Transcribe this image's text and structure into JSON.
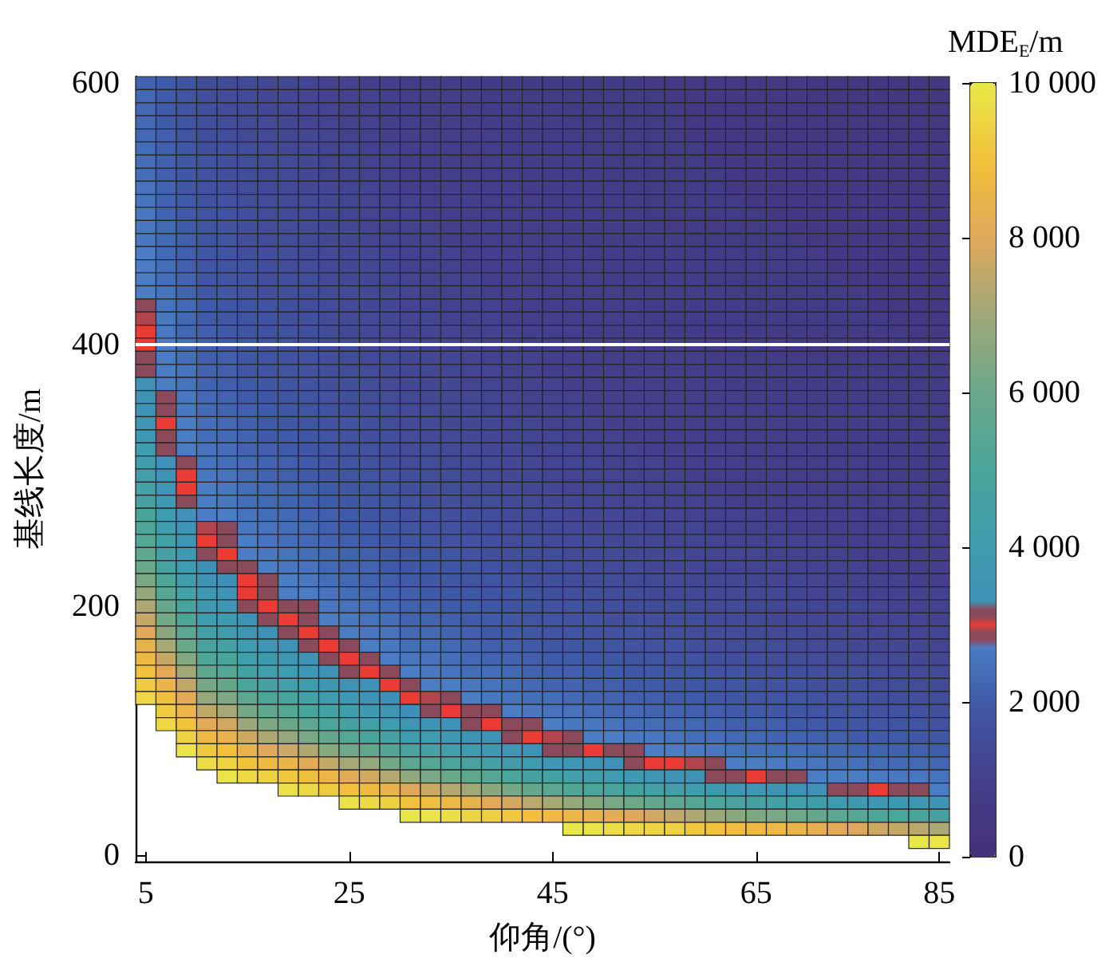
{
  "chart_data": {
    "type": "heatmap",
    "xlabel": "仰角/(°)",
    "ylabel": "基线长度/m",
    "clabel": "MDE$_{E}$/m",
    "clim": [
      0,
      10000
    ],
    "cticks": [
      0,
      {
        "value": 2000,
        "label": "2 000"
      },
      {
        "value": 4000,
        "label": "4 000"
      },
      {
        "value": 6000,
        "label": "6 000"
      },
      {
        "value": 8000,
        "label": "8 000"
      },
      {
        "value": 10000,
        "label": "10 000"
      }
    ],
    "ref_lines": [
      {
        "axis": "y",
        "value": "400",
        "color": "#ffffff"
      }
    ],
    "categories": [
      "5",
      null,
      null,
      null,
      null,
      null,
      null,
      null,
      null,
      null,
      "25",
      null,
      null,
      null,
      null,
      null,
      null,
      null,
      null,
      null,
      "45",
      null,
      null,
      null,
      null,
      null,
      null,
      null,
      null,
      null,
      "65",
      null,
      null,
      null,
      null,
      null,
      null,
      null,
      null,
      "85"
    ],
    "y_categories": [
      "600",
      null,
      null,
      null,
      null,
      null,
      null,
      null,
      null,
      null,
      null,
      null,
      null,
      null,
      null,
      null,
      null,
      null,
      null,
      null,
      "400",
      null,
      null,
      null,
      null,
      null,
      null,
      null,
      null,
      null,
      null,
      null,
      null,
      null,
      null,
      null,
      null,
      null,
      null,
      null,
      "200",
      null,
      null,
      null,
      null,
      null,
      null,
      null,
      null,
      null,
      null,
      null,
      null,
      null,
      null,
      null,
      null,
      null,
      null,
      "0"
    ],
    "cells": [
      [
        2200,
        2000,
        1800,
        1500,
        1500,
        1400,
        1300,
        1300,
        1200,
        1100,
        1100,
        1000,
        1000,
        900,
        900,
        900,
        800,
        800,
        800,
        800,
        700,
        700,
        700,
        700,
        700,
        600,
        600,
        600,
        600,
        600,
        600,
        600,
        600,
        500,
        500,
        500,
        500,
        500,
        500,
        500
      ],
      [
        2300,
        2000,
        1800,
        1600,
        1500,
        1400,
        1300,
        1300,
        1200,
        1100,
        1100,
        1100,
        1000,
        900,
        900,
        900,
        900,
        800,
        800,
        800,
        700,
        700,
        700,
        700,
        700,
        700,
        600,
        600,
        600,
        600,
        600,
        600,
        600,
        500,
        500,
        500,
        500,
        500,
        500,
        500
      ],
      [
        2300,
        2000,
        1800,
        1600,
        1500,
        1400,
        1300,
        1300,
        1200,
        1200,
        1100,
        1100,
        1000,
        1000,
        900,
        900,
        900,
        800,
        800,
        800,
        800,
        700,
        700,
        700,
        700,
        700,
        700,
        600,
        600,
        600,
        600,
        600,
        600,
        600,
        500,
        500,
        500,
        500,
        500,
        500
      ],
      [
        2300,
        2000,
        1800,
        1600,
        1500,
        1400,
        1400,
        1300,
        1200,
        1200,
        1100,
        1100,
        1000,
        1000,
        900,
        900,
        900,
        800,
        800,
        800,
        800,
        700,
        700,
        700,
        700,
        700,
        700,
        600,
        600,
        600,
        600,
        600,
        600,
        600,
        500,
        500,
        500,
        500,
        500,
        500
      ],
      [
        2300,
        2100,
        1800,
        1600,
        1600,
        1400,
        1400,
        1300,
        1300,
        1200,
        1100,
        1100,
        1000,
        1000,
        1000,
        900,
        900,
        900,
        800,
        800,
        800,
        800,
        700,
        700,
        700,
        700,
        700,
        600,
        600,
        600,
        600,
        600,
        600,
        600,
        500,
        500,
        500,
        500,
        500,
        500
      ],
      [
        2400,
        2100,
        1900,
        1600,
        1600,
        1500,
        1400,
        1300,
        1300,
        1200,
        1200,
        1100,
        1100,
        1000,
        1000,
        900,
        900,
        900,
        800,
        800,
        800,
        800,
        700,
        700,
        700,
        700,
        700,
        700,
        600,
        600,
        600,
        600,
        600,
        600,
        600,
        500,
        500,
        500,
        500,
        500
      ],
      [
        2400,
        2100,
        1900,
        1700,
        1600,
        1500,
        1400,
        1400,
        1300,
        1200,
        1200,
        1100,
        1100,
        1000,
        1000,
        900,
        900,
        900,
        900,
        800,
        800,
        800,
        800,
        700,
        700,
        700,
        700,
        700,
        600,
        600,
        600,
        600,
        600,
        600,
        600,
        600,
        500,
        500,
        500,
        500
      ],
      [
        2400,
        2100,
        1900,
        1700,
        1600,
        1500,
        1400,
        1400,
        1300,
        1200,
        1200,
        1100,
        1100,
        1000,
        1000,
        1000,
        900,
        900,
        900,
        800,
        800,
        800,
        800,
        700,
        700,
        700,
        700,
        700,
        700,
        600,
        600,
        600,
        600,
        600,
        600,
        600,
        500,
        500,
        500,
        500
      ],
      [
        2500,
        2200,
        1900,
        1700,
        1600,
        1500,
        1400,
        1400,
        1300,
        1300,
        1200,
        1200,
        1100,
        1000,
        1000,
        1000,
        900,
        900,
        900,
        800,
        800,
        800,
        800,
        800,
        700,
        700,
        700,
        700,
        700,
        600,
        600,
        600,
        600,
        600,
        600,
        600,
        600,
        500,
        500,
        500
      ],
      [
        2500,
        2200,
        2000,
        1700,
        1700,
        1500,
        1500,
        1400,
        1400,
        1300,
        1200,
        1200,
        1100,
        1100,
        1000,
        1000,
        1000,
        900,
        900,
        900,
        800,
        800,
        800,
        800,
        800,
        700,
        700,
        700,
        700,
        700,
        600,
        600,
        600,
        600,
        600,
        600,
        600,
        600,
        600,
        500
      ],
      [
        2600,
        2200,
        2000,
        1800,
        1700,
        1600,
        1500,
        1400,
        1400,
        1300,
        1200,
        1200,
        1100,
        1100,
        1000,
        1000,
        1000,
        900,
        900,
        900,
        800,
        800,
        800,
        800,
        800,
        700,
        700,
        700,
        700,
        700,
        700,
        600,
        600,
        600,
        600,
        600,
        600,
        600,
        600,
        500
      ],
      [
        2600,
        2300,
        2000,
        1800,
        1700,
        1600,
        1500,
        1500,
        1400,
        1300,
        1300,
        1200,
        1100,
        1100,
        1100,
        1000,
        1000,
        1000,
        900,
        900,
        900,
        800,
        800,
        800,
        800,
        800,
        700,
        700,
        700,
        700,
        700,
        700,
        600,
        600,
        600,
        600,
        600,
        600,
        600,
        600
      ],
      [
        2600,
        2300,
        2100,
        1800,
        1800,
        1600,
        1500,
        1500,
        1400,
        1300,
        1300,
        1200,
        1200,
        1100,
        1100,
        1000,
        1000,
        1000,
        900,
        900,
        900,
        800,
        800,
        800,
        800,
        800,
        800,
        700,
        700,
        700,
        700,
        700,
        700,
        600,
        600,
        600,
        600,
        600,
        600,
        600
      ],
      [
        2700,
        2300,
        2100,
        1900,
        1800,
        1600,
        1600,
        1500,
        1400,
        1400,
        1300,
        1300,
        1200,
        1100,
        1100,
        1100,
        1000,
        1000,
        1000,
        900,
        900,
        900,
        800,
        800,
        800,
        800,
        800,
        700,
        700,
        700,
        700,
        700,
        700,
        700,
        600,
        600,
        600,
        600,
        600,
        600
      ],
      [
        2700,
        2400,
        2100,
        1900,
        1800,
        1700,
        1600,
        1500,
        1500,
        1400,
        1300,
        1300,
        1200,
        1100,
        1100,
        1100,
        1000,
        1000,
        1000,
        900,
        900,
        900,
        900,
        800,
        800,
        800,
        800,
        800,
        700,
        700,
        700,
        700,
        700,
        700,
        600,
        600,
        600,
        600,
        600,
        600
      ],
      [
        2700,
        2400,
        2200,
        1900,
        1800,
        1700,
        1600,
        1600,
        1500,
        1400,
        1300,
        1300,
        1200,
        1200,
        1100,
        1100,
        1100,
        1000,
        1000,
        900,
        900,
        900,
        900,
        800,
        800,
        800,
        800,
        800,
        700,
        700,
        700,
        700,
        700,
        700,
        700,
        600,
        600,
        600,
        600,
        600
      ],
      [
        2700,
        2500,
        2200,
        1900,
        1900,
        1700,
        1600,
        1600,
        1500,
        1400,
        1400,
        1300,
        1300,
        1200,
        1100,
        1100,
        1100,
        1000,
        1000,
        1000,
        900,
        900,
        900,
        900,
        800,
        800,
        800,
        800,
        800,
        700,
        700,
        700,
        700,
        700,
        700,
        700,
        600,
        600,
        600,
        600
      ],
      [
        2850,
        2500,
        2300,
        2000,
        1900,
        1800,
        1700,
        1600,
        1500,
        1500,
        1400,
        1300,
        1300,
        1200,
        1200,
        1100,
        1100,
        1100,
        1000,
        1000,
        900,
        900,
        900,
        900,
        900,
        800,
        800,
        800,
        800,
        800,
        700,
        700,
        700,
        700,
        700,
        700,
        600,
        600,
        600,
        600
      ],
      [
        2910,
        2600,
        2300,
        2000,
        1900,
        1800,
        1700,
        1600,
        1600,
        1500,
        1400,
        1400,
        1300,
        1200,
        1200,
        1100,
        1100,
        1100,
        1000,
        1000,
        1000,
        900,
        900,
        900,
        900,
        800,
        800,
        800,
        800,
        800,
        700,
        700,
        700,
        700,
        700,
        700,
        700,
        600,
        600,
        600
      ],
      [
        2970,
        2600,
        2300,
        2100,
        2000,
        1800,
        1700,
        1700,
        1600,
        1500,
        1400,
        1400,
        1300,
        1200,
        1200,
        1200,
        1100,
        1100,
        1100,
        1000,
        1000,
        1000,
        900,
        900,
        900,
        900,
        800,
        800,
        800,
        800,
        800,
        700,
        700,
        700,
        700,
        700,
        700,
        700,
        600,
        600
      ],
      [
        3030,
        2700,
        2400,
        2100,
        2000,
        1900,
        1800,
        1700,
        1600,
        1500,
        1500,
        1400,
        1300,
        1300,
        1200,
        1200,
        1200,
        1100,
        1100,
        1000,
        1000,
        1000,
        1000,
        900,
        900,
        900,
        900,
        800,
        800,
        800,
        800,
        800,
        700,
        700,
        700,
        700,
        700,
        700,
        700,
        600
      ],
      [
        3100,
        2700,
        2400,
        2100,
        2100,
        1900,
        1800,
        1700,
        1700,
        1600,
        1500,
        1400,
        1400,
        1300,
        1300,
        1200,
        1200,
        1100,
        1100,
        1100,
        1000,
        1000,
        1000,
        900,
        900,
        900,
        900,
        900,
        800,
        800,
        800,
        800,
        800,
        700,
        700,
        700,
        700,
        700,
        700,
        700
      ],
      [
        3200,
        2700,
        2500,
        2200,
        2100,
        1900,
        1800,
        1800,
        1700,
        1600,
        1500,
        1500,
        1400,
        1300,
        1300,
        1200,
        1200,
        1200,
        1100,
        1100,
        1000,
        1000,
        1000,
        1000,
        900,
        900,
        900,
        900,
        800,
        800,
        800,
        800,
        800,
        800,
        700,
        700,
        700,
        700,
        700,
        700
      ],
      [
        3350,
        2700,
        2500,
        2200,
        2100,
        2000,
        1900,
        1800,
        1700,
        1600,
        1600,
        1500,
        1400,
        1300,
        1300,
        1300,
        1200,
        1200,
        1100,
        1100,
        1100,
        1000,
        1000,
        1000,
        1000,
        900,
        900,
        900,
        900,
        800,
        800,
        800,
        800,
        800,
        800,
        700,
        700,
        700,
        700,
        700
      ],
      [
        3450,
        2870,
        2600,
        2300,
        2200,
        2000,
        1900,
        1800,
        1800,
        1700,
        1600,
        1500,
        1500,
        1400,
        1300,
        1300,
        1300,
        1200,
        1200,
        1100,
        1100,
        1100,
        1000,
        1000,
        1000,
        1000,
        900,
        900,
        900,
        900,
        800,
        800,
        800,
        800,
        800,
        800,
        700,
        700,
        700,
        700
      ],
      [
        3550,
        2900,
        2600,
        2300,
        2200,
        2100,
        2000,
        1900,
        1800,
        1700,
        1600,
        1600,
        1500,
        1400,
        1400,
        1300,
        1300,
        1200,
        1200,
        1100,
        1100,
        1100,
        1000,
        1000,
        1000,
        1000,
        1000,
        900,
        900,
        900,
        900,
        800,
        800,
        800,
        800,
        800,
        800,
        700,
        700,
        700
      ],
      [
        3650,
        3000,
        2700,
        2400,
        2300,
        2100,
        2000,
        1900,
        1800,
        1700,
        1700,
        1600,
        1500,
        1400,
        1400,
        1300,
        1300,
        1300,
        1200,
        1200,
        1100,
        1100,
        1100,
        1000,
        1000,
        1000,
        1000,
        900,
        900,
        900,
        900,
        900,
        800,
        800,
        800,
        800,
        800,
        800,
        700,
        700
      ],
      [
        3800,
        3100,
        2700,
        2400,
        2300,
        2200,
        2000,
        2000,
        1900,
        1800,
        1700,
        1600,
        1600,
        1500,
        1400,
        1400,
        1300,
        1300,
        1200,
        1200,
        1200,
        1100,
        1100,
        1100,
        1000,
        1000,
        1000,
        1000,
        900,
        900,
        900,
        900,
        900,
        800,
        800,
        800,
        800,
        800,
        800,
        700
      ],
      [
        4000,
        3150,
        2700,
        2500,
        2400,
        2200,
        2100,
        2000,
        1900,
        1800,
        1700,
        1700,
        1600,
        1500,
        1500,
        1400,
        1400,
        1300,
        1300,
        1200,
        1200,
        1200,
        1100,
        1100,
        1100,
        1000,
        1000,
        1000,
        1000,
        900,
        900,
        900,
        900,
        900,
        800,
        800,
        800,
        800,
        800,
        800
      ],
      [
        4100,
        3350,
        2890,
        2500,
        2400,
        2300,
        2200,
        2100,
        2000,
        1900,
        1800,
        1700,
        1600,
        1500,
        1500,
        1400,
        1400,
        1400,
        1300,
        1300,
        1200,
        1200,
        1200,
        1100,
        1100,
        1100,
        1000,
        1000,
        1000,
        1000,
        900,
        900,
        900,
        900,
        900,
        900,
        800,
        800,
        800,
        800
      ],
      [
        4300,
        3500,
        2960,
        2600,
        2500,
        2300,
        2200,
        2100,
        2000,
        1900,
        1800,
        1800,
        1700,
        1600,
        1500,
        1500,
        1400,
        1400,
        1300,
        1300,
        1200,
        1200,
        1200,
        1200,
        1100,
        1100,
        1100,
        1000,
        1000,
        1000,
        1000,
        1000,
        900,
        900,
        900,
        900,
        900,
        800,
        800,
        800
      ],
      [
        4500,
        3600,
        3040,
        2700,
        2600,
        2400,
        2300,
        2200,
        2100,
        2000,
        1900,
        1800,
        1700,
        1600,
        1600,
        1500,
        1500,
        1400,
        1400,
        1300,
        1300,
        1200,
        1200,
        1200,
        1200,
        1100,
        1100,
        1100,
        1000,
        1000,
        1000,
        1000,
        1000,
        900,
        900,
        900,
        900,
        900,
        900,
        800
      ],
      [
        4700,
        3800,
        3200,
        2700,
        2600,
        2400,
        2300,
        2200,
        2100,
        2000,
        1900,
        1900,
        1800,
        1700,
        1600,
        1600,
        1500,
        1500,
        1400,
        1400,
        1300,
        1300,
        1200,
        1200,
        1200,
        1200,
        1100,
        1100,
        1100,
        1000,
        1000,
        1000,
        1000,
        1000,
        900,
        900,
        900,
        900,
        900,
        900
      ],
      [
        4900,
        4000,
        3350,
        2700,
        2700,
        2500,
        2400,
        2300,
        2200,
        2100,
        2000,
        1900,
        1800,
        1700,
        1700,
        1600,
        1600,
        1500,
        1400,
        1400,
        1400,
        1300,
        1300,
        1300,
        1200,
        1200,
        1200,
        1100,
        1100,
        1100,
        1100,
        1000,
        1000,
        1000,
        1000,
        1000,
        900,
        900,
        900,
        900
      ],
      [
        5100,
        4100,
        3500,
        2910,
        2800,
        2600,
        2500,
        2400,
        2300,
        2100,
        2000,
        2000,
        1900,
        1800,
        1700,
        1700,
        1600,
        1500,
        1500,
        1400,
        1400,
        1400,
        1300,
        1300,
        1300,
        1200,
        1200,
        1200,
        1100,
        1100,
        1100,
        1100,
        1000,
        1000,
        1000,
        1000,
        1000,
        900,
        900,
        900
      ],
      [
        5300,
        4400,
        3600,
        3000,
        2880,
        2700,
        2500,
        2400,
        2300,
        2200,
        2100,
        2000,
        1900,
        1800,
        1800,
        1700,
        1700,
        1600,
        1500,
        1500,
        1400,
        1400,
        1400,
        1300,
        1300,
        1300,
        1200,
        1200,
        1200,
        1100,
        1100,
        1100,
        1100,
        1100,
        1000,
        1000,
        1000,
        1000,
        1000,
        900
      ],
      [
        5700,
        4600,
        3800,
        3100,
        2980,
        2700,
        2600,
        2500,
        2400,
        2300,
        2200,
        2100,
        2000,
        1900,
        1800,
        1800,
        1700,
        1600,
        1600,
        1500,
        1500,
        1400,
        1400,
        1400,
        1300,
        1300,
        1300,
        1200,
        1200,
        1200,
        1200,
        1100,
        1100,
        1100,
        1100,
        1000,
        1000,
        1000,
        1000,
        1000
      ],
      [
        6000,
        4800,
        4000,
        3300,
        3100,
        2830,
        2700,
        2600,
        2500,
        2300,
        2200,
        2200,
        2000,
        1900,
        1900,
        1800,
        1800,
        1700,
        1600,
        1600,
        1500,
        1500,
        1400,
        1400,
        1400,
        1300,
        1300,
        1300,
        1200,
        1200,
        1200,
        1200,
        1100,
        1100,
        1100,
        1100,
        1000,
        1000,
        1000,
        1000
      ],
      [
        6300,
        5100,
        4200,
        3500,
        3300,
        3000,
        2790,
        2700,
        2600,
        2400,
        2300,
        2200,
        2100,
        2000,
        1900,
        1900,
        1800,
        1800,
        1700,
        1600,
        1600,
        1500,
        1500,
        1500,
        1400,
        1400,
        1400,
        1300,
        1300,
        1300,
        1200,
        1200,
        1200,
        1200,
        1100,
        1100,
        1100,
        1100,
        1000,
        1000
      ],
      [
        6800,
        5400,
        4500,
        3700,
        3500,
        3040,
        2890,
        2700,
        2700,
        2500,
        2400,
        2300,
        2200,
        2100,
        2000,
        1900,
        1900,
        1800,
        1800,
        1700,
        1600,
        1600,
        1600,
        1500,
        1500,
        1400,
        1400,
        1400,
        1300,
        1300,
        1300,
        1300,
        1200,
        1200,
        1200,
        1100,
        1100,
        1100,
        1100,
        1100
      ],
      [
        7200,
        5800,
        4800,
        3900,
        3650,
        3200,
        3000,
        2890,
        2800,
        2600,
        2500,
        2400,
        2300,
        2200,
        2100,
        2000,
        2000,
        1900,
        1800,
        1800,
        1700,
        1700,
        1600,
        1600,
        1500,
        1500,
        1500,
        1400,
        1400,
        1400,
        1300,
        1300,
        1300,
        1200,
        1200,
        1200,
        1200,
        1100,
        1100,
        1100
      ],
      [
        7600,
        6200,
        5100,
        4150,
        3900,
        3450,
        3200,
        3000,
        2880,
        2700,
        2600,
        2500,
        2400,
        2200,
        2200,
        2100,
        2000,
        2000,
        1900,
        1800,
        1800,
        1700,
        1700,
        1600,
        1600,
        1600,
        1500,
        1500,
        1400,
        1400,
        1400,
        1300,
        1300,
        1300,
        1300,
        1200,
        1200,
        1200,
        1200,
        1100
      ],
      [
        8000,
        6600,
        5550,
        4450,
        4200,
        3650,
        3400,
        3130,
        3000,
        2830,
        2700,
        2600,
        2500,
        2300,
        2300,
        2200,
        2100,
        2000,
        2000,
        1900,
        1800,
        1800,
        1700,
        1700,
        1700,
        1600,
        1600,
        1500,
        1500,
        1500,
        1400,
        1400,
        1400,
        1300,
        1300,
        1300,
        1300,
        1200,
        1200,
        1200
      ],
      [
        8400,
        7100,
        6000,
        4800,
        4500,
        3950,
        3600,
        3450,
        3200,
        2960,
        2820,
        2700,
        2600,
        2400,
        2400,
        2300,
        2200,
        2100,
        2100,
        2000,
        1900,
        1900,
        1800,
        1800,
        1700,
        1700,
        1700,
        1600,
        1600,
        1500,
        1500,
        1500,
        1400,
        1400,
        1400,
        1300,
        1300,
        1300,
        1300,
        1200
      ],
      [
        8700,
        7600,
        6450,
        5200,
        4850,
        4250,
        3900,
        3650,
        3450,
        3150,
        2960,
        2850,
        2700,
        2600,
        2500,
        2400,
        2300,
        2200,
        2200,
        2100,
        2000,
        2000,
        1900,
        1900,
        1800,
        1800,
        1700,
        1700,
        1600,
        1600,
        1600,
        1500,
        1500,
        1500,
        1400,
        1400,
        1400,
        1400,
        1300,
        1300
      ],
      [
        9000,
        8100,
        7000,
        5700,
        5300,
        4600,
        4250,
        4000,
        3700,
        3400,
        3150,
        3000,
        2840,
        2700,
        2600,
        2500,
        2400,
        2400,
        2300,
        2200,
        2100,
        2100,
        2000,
        2000,
        1900,
        1900,
        1800,
        1800,
        1700,
        1700,
        1600,
        1600,
        1600,
        1600,
        1500,
        1500,
        1500,
        1400,
        1400,
        1400
      ],
      [
        9300,
        8500,
        7500,
        6200,
        5800,
        5000,
        4650,
        4350,
        4050,
        3700,
        3450,
        3350,
        3000,
        2830,
        2700,
        2700,
        2600,
        2500,
        2400,
        2300,
        2200,
        2200,
        2100,
        2100,
        2000,
        2000,
        1900,
        1900,
        1800,
        1800,
        1700,
        1700,
        1700,
        1600,
        1600,
        1600,
        1500,
        1500,
        1500,
        1400
      ],
      [
        9600,
        8900,
        8100,
        6800,
        6350,
        5600,
        5100,
        4800,
        4500,
        4050,
        3750,
        3550,
        3300,
        3000,
        2910,
        2820,
        2700,
        2600,
        2500,
        2400,
        2400,
        2300,
        2200,
        2200,
        2100,
        2100,
        2000,
        2000,
        1900,
        1900,
        1800,
        1800,
        1800,
        1700,
        1700,
        1700,
        1600,
        1600,
        1600,
        1500
      ],
      [
        null,
        9300,
        8600,
        7500,
        7100,
        6200,
        5700,
        5350,
        4900,
        4500,
        4150,
        3900,
        3600,
        3300,
        3100,
        3000,
        2900,
        2800,
        2700,
        2600,
        2500,
        2500,
        2400,
        2300,
        2300,
        2200,
        2200,
        2100,
        2100,
        2000,
        2000,
        1900,
        1900,
        1800,
        1800,
        1800,
        1700,
        1700,
        1700,
        1600
      ],
      [
        null,
        9600,
        9050,
        8100,
        7800,
        6950,
        6350,
        6000,
        5600,
        5000,
        4700,
        4400,
        4000,
        3650,
        3500,
        3350,
        3150,
        3000,
        2890,
        2800,
        2700,
        2600,
        2600,
        2500,
        2400,
        2400,
        2300,
        2300,
        2200,
        2100,
        2100,
        2100,
        2000,
        2000,
        1900,
        1900,
        1900,
        1800,
        1800,
        1700
      ],
      [
        null,
        null,
        9450,
        8700,
        8400,
        7700,
        7200,
        6800,
        6300,
        5750,
        5300,
        4950,
        4550,
        4150,
        4000,
        3700,
        3550,
        3400,
        3200,
        3000,
        2910,
        2830,
        2700,
        2700,
        2600,
        2600,
        2500,
        2400,
        2400,
        2300,
        2300,
        2200,
        2200,
        2100,
        2100,
        2000,
        2000,
        2000,
        1900,
        1900
      ],
      [
        null,
        null,
        9900,
        9200,
        9000,
        8450,
        8000,
        7650,
        7200,
        6550,
        6100,
        5700,
        5250,
        4800,
        4550,
        4300,
        4050,
        3800,
        3600,
        3400,
        3200,
        3100,
        3000,
        2900,
        2860,
        2700,
        2700,
        2650,
        2570,
        2500,
        2450,
        2400,
        2400,
        2300,
        2250,
        2200,
        2170,
        2130,
        2100,
        2050
      ],
      [
        null,
        null,
        null,
        9700,
        9500,
        9050,
        8750,
        8500,
        8100,
        7550,
        7100,
        6750,
        6150,
        5600,
        5300,
        5000,
        4800,
        4500,
        4200,
        4000,
        3750,
        3600,
        3500,
        3350,
        3200,
        3060,
        3000,
        2910,
        2820,
        2700,
        2700,
        2660,
        2600,
        2540,
        2470,
        2440,
        2380,
        2340,
        2310,
        2250
      ],
      [
        null,
        null,
        null,
        null,
        9900,
        9600,
        9400,
        9200,
        8900,
        8600,
        8100,
        7800,
        7300,
        6700,
        6300,
        6000,
        5700,
        5350,
        5000,
        4700,
        4500,
        4300,
        4100,
        3950,
        3800,
        3600,
        3550,
        3400,
        3200,
        3150,
        3000,
        2900,
        2900,
        2700,
        2700,
        2700,
        2650,
        2600,
        2570,
        2500
      ],
      [
        null,
        null,
        null,
        null,
        null,
        null,
        null,
        9800,
        9600,
        9300,
        9000,
        8800,
        8500,
        7950,
        7650,
        7300,
        7000,
        6550,
        6200,
        5800,
        5550,
        5250,
        5000,
        4850,
        4700,
        4500,
        4350,
        4100,
        3900,
        3750,
        3600,
        3550,
        3450,
        3350,
        3200,
        3150,
        3000,
        2900,
        2900,
        2700
      ],
      [
        null,
        null,
        null,
        null,
        null,
        null,
        null,
        null,
        null,
        null,
        9850,
        9650,
        9400,
        9050,
        8900,
        8700,
        8450,
        8100,
        7800,
        7400,
        7100,
        6800,
        6500,
        6250,
        6050,
        5750,
        5600,
        5300,
        5000,
        4800,
        4650,
        4550,
        4400,
        4200,
        4000,
        3900,
        3750,
        3700,
        3600,
        3500
      ],
      [
        null,
        null,
        null,
        null,
        null,
        null,
        null,
        null,
        null,
        null,
        null,
        null,
        null,
        9950,
        9900,
        9750,
        9550,
        9400,
        9200,
        8950,
        8750,
        8600,
        8450,
        8150,
        8000,
        7750,
        7500,
        7200,
        6900,
        6600,
        6350,
        6250,
        6050,
        5800,
        5550,
        5400,
        5150,
        5000,
        4900,
        4700
      ],
      [
        null,
        null,
        null,
        null,
        null,
        null,
        null,
        null,
        null,
        null,
        null,
        null,
        null,
        null,
        null,
        null,
        null,
        null,
        null,
        null,
        null,
        9950,
        9900,
        9750,
        9600,
        9500,
        9400,
        9200,
        9050,
        8900,
        8750,
        8700,
        8550,
        8300,
        8100,
        7950,
        7700,
        7550,
        7400,
        7150
      ],
      [
        null,
        null,
        null,
        null,
        null,
        null,
        null,
        null,
        null,
        null,
        null,
        null,
        null,
        null,
        null,
        null,
        null,
        null,
        null,
        null,
        null,
        null,
        null,
        null,
        null,
        null,
        null,
        null,
        null,
        null,
        null,
        null,
        null,
        null,
        null,
        null,
        null,
        null,
        9950,
        9930
      ],
      [
        null,
        null,
        null,
        null,
        null,
        null,
        null,
        null,
        null,
        null,
        null,
        null,
        null,
        null,
        null,
        null,
        null,
        null,
        null,
        null,
        null,
        null,
        null,
        null,
        null,
        null,
        null,
        null,
        null,
        null,
        null,
        null,
        null,
        null,
        null,
        null,
        null,
        null,
        null,
        null
      ]
    ]
  }
}
